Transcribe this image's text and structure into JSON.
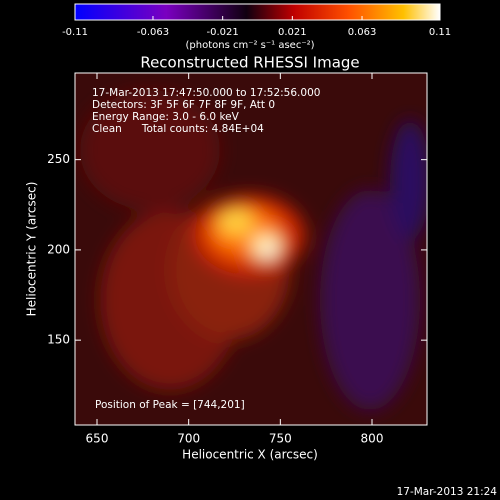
{
  "chart_data": {
    "type": "image",
    "title": "Reconstructed RHESSI Image",
    "xlabel": "Heliocentric X (arcsec)",
    "ylabel": "Heliocentric Y (arcsec)",
    "xlim": [
      638,
      830
    ],
    "xticks": [
      650,
      700,
      750,
      800
    ],
    "ylim": [
      103,
      298
    ],
    "yticks": [
      150,
      200,
      250
    ],
    "colorbar": {
      "lim": [
        -0.11,
        0.11
      ],
      "ticks": [
        -0.11,
        -0.063,
        -0.021,
        0.021,
        0.063,
        0.11
      ],
      "label": "(photons cm⁻² s⁻¹ asec⁻²)"
    },
    "annotations": [
      "17-Mar-2013 17:47:50.000 to 17:52:56.000",
      "Detectors: 3F 5F 6F 7F 8F 9F, Att 0",
      "Energy Range: 3.0 - 6.0 keV",
      "Clean      Total counts: 4.84E+04"
    ],
    "peak_label": "Position of Peak = [744,201]",
    "timestamp": "17-Mar-2013 21:24"
  }
}
